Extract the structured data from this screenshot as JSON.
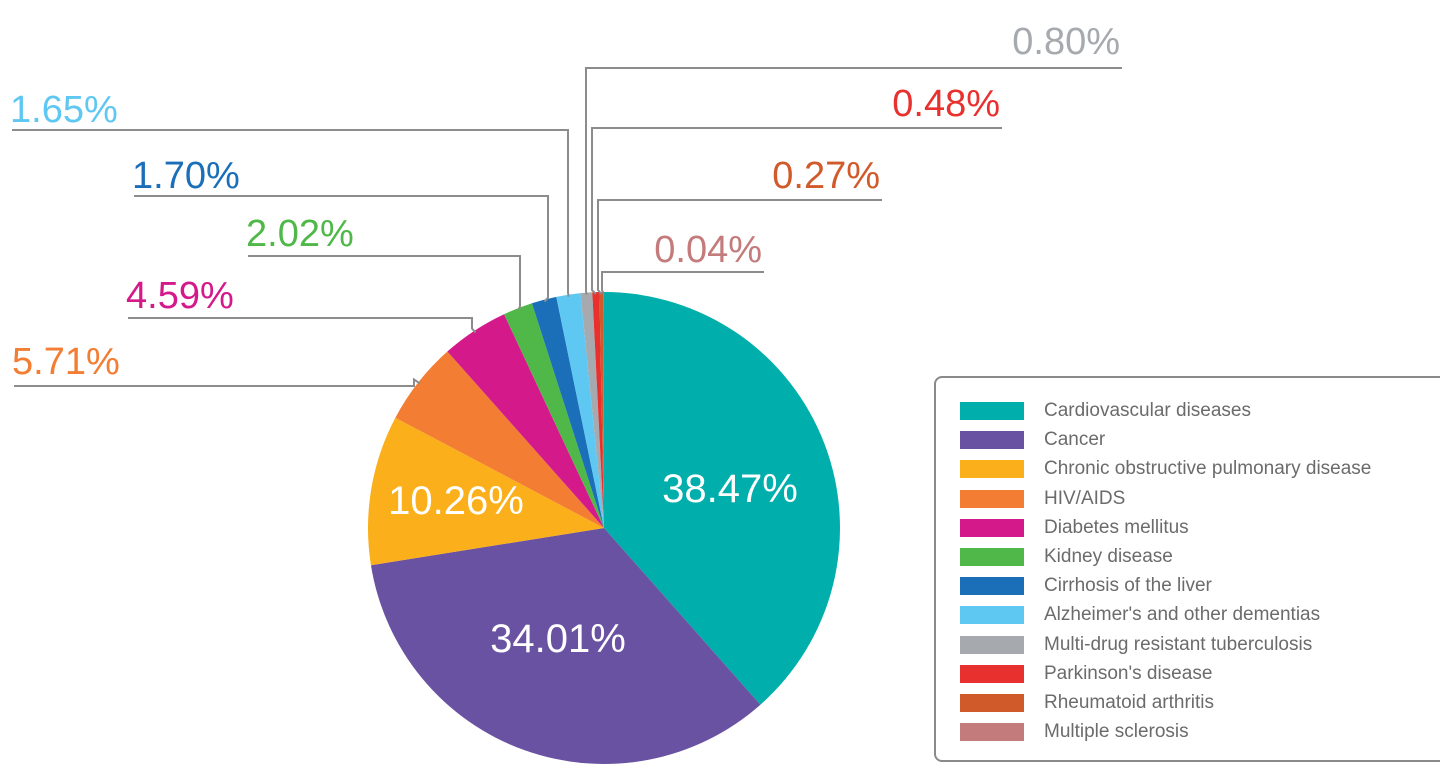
{
  "chart_data": {
    "type": "pie",
    "title": "",
    "legend_position": "bottom-right",
    "series": [
      {
        "name": "Cardiovascular diseases",
        "value": 38.47,
        "label": "38.47%",
        "color": "#00aeac"
      },
      {
        "name": "Cancer",
        "value": 34.01,
        "label": "34.01%",
        "color": "#6a52a3"
      },
      {
        "name": "Chronic obstructive pulmonary disease",
        "value": 10.26,
        "label": "10.26%",
        "color": "#fbaf1b"
      },
      {
        "name": "HIV/AIDS",
        "value": 5.71,
        "label": "5.71%",
        "color": "#f37d32"
      },
      {
        "name": "Diabetes mellitus",
        "value": 4.59,
        "label": "4.59%",
        "color": "#d4198a"
      },
      {
        "name": "Kidney disease",
        "value": 2.02,
        "label": "2.02%",
        "color": "#4fb848"
      },
      {
        "name": "Cirrhosis of the liver",
        "value": 1.7,
        "label": "1.70%",
        "color": "#1a6fb8"
      },
      {
        "name": "Alzheimer's and other dementias",
        "value": 1.65,
        "label": "1.65%",
        "color": "#5ec8f2"
      },
      {
        "name": "Multi-drug resistant tuberculosis",
        "value": 0.8,
        "label": "0.80%",
        "color": "#a6aaae"
      },
      {
        "name": "Parkinson's disease",
        "value": 0.48,
        "label": "0.48%",
        "color": "#e8312f"
      },
      {
        "name": "Rheumatoid arthritis",
        "value": 0.27,
        "label": "0.27%",
        "color": "#d05a2a"
      },
      {
        "name": "Multiple sclerosis",
        "value": 0.04,
        "label": "0.04%",
        "color": "#c47b7b"
      }
    ]
  }
}
